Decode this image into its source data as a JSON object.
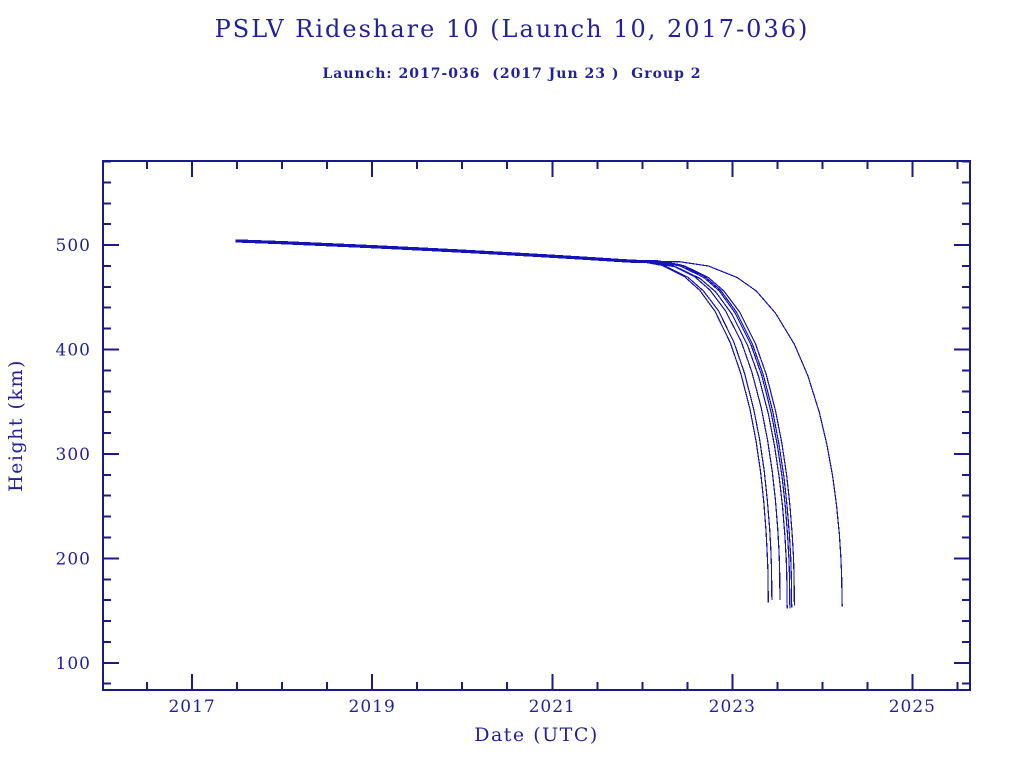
{
  "colors": {
    "text": "#2121a0",
    "axis": "#1a1a8c",
    "line": "#1313b8",
    "background": "#ffffff"
  },
  "chart_data": {
    "type": "line",
    "title": "PSLV Rideshare 10 (Launch 10, 2017-036)",
    "subtitle": "Launch: 2017-036  (2017 Jun 23 )  Group 2",
    "xlabel": "Date (UTC)",
    "ylabel": "Height (km)",
    "xlim": [
      2016.01,
      2025.64
    ],
    "ylim": [
      74,
      580.5
    ],
    "x_major_ticks": [
      2017,
      2019,
      2021,
      2023,
      2025
    ],
    "x_tick_labels": [
      "2017",
      "2019",
      "2021",
      "2023",
      "2025"
    ],
    "x_minor_step": 0.5,
    "y_major_ticks": [
      100,
      200,
      300,
      400,
      500
    ],
    "y_tick_labels": [
      "100",
      "200",
      "300",
      "400",
      "500"
    ],
    "y_minor_step": 20,
    "grid": false,
    "legend": false,
    "line_color": "#1313b8",
    "series": [
      {
        "name": "s1",
        "points": [
          [
            2017.48,
            504.0
          ],
          [
            2018,
            502.3
          ],
          [
            2018.5,
            500.4
          ],
          [
            2019,
            498.5
          ],
          [
            2019.5,
            496.4
          ],
          [
            2020,
            494.2
          ],
          [
            2020.5,
            491.8
          ],
          [
            2021,
            489.3
          ],
          [
            2021.4,
            487.2
          ],
          [
            2021.7,
            485.5
          ],
          [
            2021.955,
            485
          ],
          [
            2022.21,
            481
          ],
          [
            2022.465,
            470
          ],
          [
            2022.635,
            457
          ],
          [
            2022.805,
            437
          ],
          [
            2022.975,
            407
          ],
          [
            2023.094,
            377
          ],
          [
            2023.196,
            343
          ],
          [
            2023.264,
            312
          ],
          [
            2023.315,
            282
          ],
          [
            2023.349,
            255
          ],
          [
            2023.374,
            227
          ],
          [
            2023.388,
            205
          ],
          [
            2023.395,
            189
          ],
          [
            2023.4,
            158
          ]
        ]
      },
      {
        "name": "s2",
        "points": [
          [
            2017.48,
            503.5
          ],
          [
            2018,
            501.8
          ],
          [
            2018.5,
            499.9
          ],
          [
            2019,
            498.0
          ],
          [
            2019.5,
            495.9
          ],
          [
            2020,
            493.7
          ],
          [
            2020.5,
            491.3
          ],
          [
            2021,
            488.8
          ],
          [
            2021.4,
            486.7
          ],
          [
            2021.75,
            484.7
          ],
          [
            2022.003,
            484
          ],
          [
            2022.257,
            480
          ],
          [
            2022.51,
            469
          ],
          [
            2022.68,
            456
          ],
          [
            2022.848,
            437
          ],
          [
            2023.018,
            407
          ],
          [
            2023.136,
            377
          ],
          [
            2023.237,
            343
          ],
          [
            2023.305,
            313
          ],
          [
            2023.355,
            283
          ],
          [
            2023.389,
            256
          ],
          [
            2023.415,
            228
          ],
          [
            2023.428,
            207
          ],
          [
            2023.435,
            191
          ],
          [
            2023.44,
            160
          ]
        ]
      },
      {
        "name": "s3",
        "points": [
          [
            2017.48,
            504.5
          ],
          [
            2018,
            502.8
          ],
          [
            2018.5,
            500.9
          ],
          [
            2019,
            499.0
          ],
          [
            2019.5,
            496.9
          ],
          [
            2020,
            494.7
          ],
          [
            2020.5,
            492.3
          ],
          [
            2021,
            489.8
          ],
          [
            2021.4,
            487.7
          ],
          [
            2021.8,
            485.5
          ],
          [
            2022.059,
            485
          ],
          [
            2022.319,
            481
          ],
          [
            2022.578,
            470
          ],
          [
            2022.751,
            457
          ],
          [
            2022.924,
            437
          ],
          [
            2023.097,
            408
          ],
          [
            2023.219,
            378
          ],
          [
            2023.322,
            344
          ],
          [
            2023.392,
            313
          ],
          [
            2023.444,
            283
          ],
          [
            2023.478,
            256
          ],
          [
            2023.504,
            229
          ],
          [
            2023.518,
            207
          ],
          [
            2023.525,
            191
          ],
          [
            2023.53,
            160
          ]
        ]
      },
      {
        "name": "s4",
        "points": [
          [
            2017.48,
            503.0
          ],
          [
            2018,
            501.3
          ],
          [
            2018.5,
            499.4
          ],
          [
            2019,
            497.5
          ],
          [
            2019.5,
            495.4
          ],
          [
            2020,
            493.2
          ],
          [
            2020.5,
            490.8
          ],
          [
            2021,
            488.3
          ],
          [
            2021.4,
            486.2
          ],
          [
            2021.85,
            483.7
          ],
          [
            2022.114,
            483
          ],
          [
            2022.378,
            479
          ],
          [
            2022.642,
            468
          ],
          [
            2022.818,
            455
          ],
          [
            2022.994,
            434
          ],
          [
            2023.17,
            404
          ],
          [
            2023.293,
            374
          ],
          [
            2023.399,
            339
          ],
          [
            2023.469,
            308
          ],
          [
            2023.522,
            277
          ],
          [
            2023.557,
            250
          ],
          [
            2023.584,
            222
          ],
          [
            2023.598,
            200
          ],
          [
            2023.605,
            183
          ],
          [
            2023.61,
            152
          ]
        ]
      },
      {
        "name": "s5",
        "points": [
          [
            2017.48,
            504.0
          ],
          [
            2018,
            502.3
          ],
          [
            2018.5,
            500.4
          ],
          [
            2019,
            498.5
          ],
          [
            2019.5,
            496.4
          ],
          [
            2020,
            494.2
          ],
          [
            2020.5,
            491.8
          ],
          [
            2021,
            489.3
          ],
          [
            2021.4,
            487.2
          ],
          [
            2021.9,
            484.4
          ],
          [
            2022.161,
            484
          ],
          [
            2022.422,
            480
          ],
          [
            2022.683,
            469
          ],
          [
            2022.857,
            456
          ],
          [
            2023.031,
            435
          ],
          [
            2023.205,
            405
          ],
          [
            2023.327,
            375
          ],
          [
            2023.431,
            340
          ],
          [
            2023.501,
            308
          ],
          [
            2023.553,
            278
          ],
          [
            2023.588,
            250
          ],
          [
            2023.614,
            222
          ],
          [
            2023.628,
            200
          ],
          [
            2023.635,
            183
          ],
          [
            2023.64,
            152
          ]
        ]
      },
      {
        "name": "s6",
        "points": [
          [
            2017.48,
            505.0
          ],
          [
            2018,
            503.3
          ],
          [
            2018.5,
            501.4
          ],
          [
            2019,
            499.5
          ],
          [
            2019.5,
            497.4
          ],
          [
            2020,
            495.2
          ],
          [
            2020.5,
            492.8
          ],
          [
            2021,
            490.3
          ],
          [
            2021.4,
            488.2
          ],
          [
            2021.9,
            485.4
          ],
          [
            2022.164,
            485
          ],
          [
            2022.428,
            481
          ],
          [
            2022.692,
            470
          ],
          [
            2022.868,
            457
          ],
          [
            2023.044,
            436
          ],
          [
            2023.22,
            406
          ],
          [
            2023.343,
            376
          ],
          [
            2023.449,
            341
          ],
          [
            2023.519,
            309
          ],
          [
            2023.572,
            279
          ],
          [
            2023.607,
            251
          ],
          [
            2023.634,
            223
          ],
          [
            2023.648,
            201
          ],
          [
            2023.655,
            184
          ],
          [
            2023.66,
            153
          ]
        ]
      },
      {
        "name": "s7",
        "points": [
          [
            2017.48,
            504.5
          ],
          [
            2018,
            502.8
          ],
          [
            2018.5,
            500.9
          ],
          [
            2019,
            499.0
          ],
          [
            2019.5,
            496.9
          ],
          [
            2020,
            494.7
          ],
          [
            2020.5,
            492.3
          ],
          [
            2021,
            489.8
          ],
          [
            2021.4,
            487.7
          ],
          [
            2021.95,
            484.6
          ],
          [
            2022.211,
            484
          ],
          [
            2022.472,
            480
          ],
          [
            2022.733,
            469
          ],
          [
            2022.907,
            456
          ],
          [
            2023.081,
            436
          ],
          [
            2023.255,
            406
          ],
          [
            2023.377,
            376
          ],
          [
            2023.481,
            341
          ],
          [
            2023.551,
            310
          ],
          [
            2023.603,
            280
          ],
          [
            2023.638,
            252
          ],
          [
            2023.664,
            224
          ],
          [
            2023.678,
            203
          ],
          [
            2023.685,
            186
          ],
          [
            2023.69,
            155
          ]
        ]
      },
      {
        "name": "s8",
        "points": [
          [
            2017.48,
            505.0
          ],
          [
            2018,
            503.3
          ],
          [
            2018.5,
            501.4
          ],
          [
            2019,
            499.5
          ],
          [
            2019.5,
            497.4
          ],
          [
            2020,
            495.2
          ],
          [
            2020.5,
            492.8
          ],
          [
            2021,
            490.3
          ],
          [
            2021.4,
            488.2
          ],
          [
            2021.75,
            486.2
          ],
          [
            2022.1,
            484.2
          ],
          [
            2022.418,
            484
          ],
          [
            2022.736,
            480
          ],
          [
            2023.054,
            469
          ],
          [
            2023.266,
            456
          ],
          [
            2023.478,
            435
          ],
          [
            2023.69,
            405
          ],
          [
            2023.838,
            375
          ],
          [
            2023.966,
            340
          ],
          [
            2024.05,
            309
          ],
          [
            2024.114,
            279
          ],
          [
            2024.156,
            252
          ],
          [
            2024.188,
            224
          ],
          [
            2024.205,
            202
          ],
          [
            2024.214,
            185
          ],
          [
            2024.22,
            154
          ]
        ]
      }
    ]
  }
}
